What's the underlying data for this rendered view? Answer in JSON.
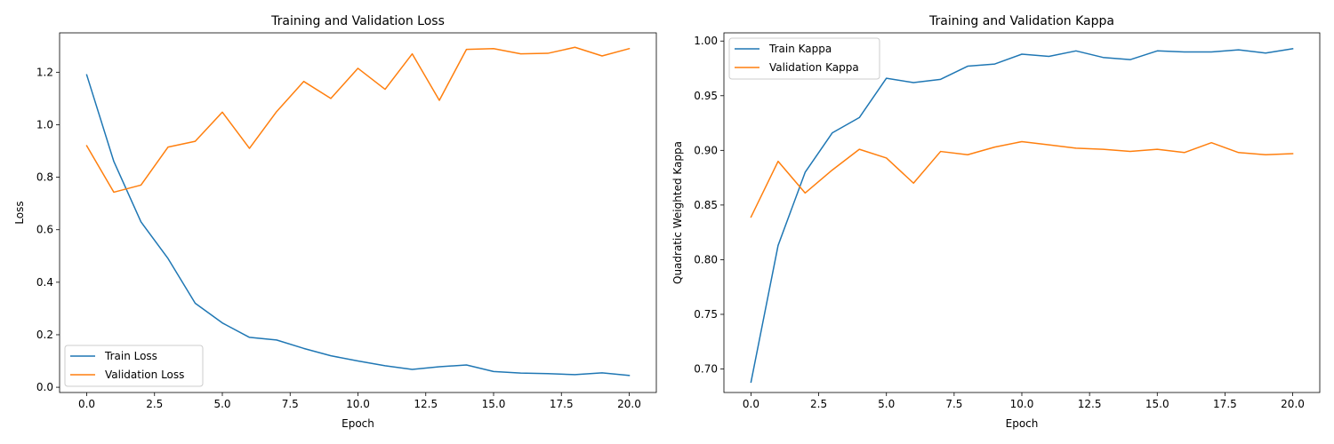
{
  "chart_data": [
    {
      "type": "line",
      "title": "Training and Validation Loss",
      "xlabel": "Epoch",
      "ylabel": "Loss",
      "xlim": [
        -1.0,
        21.0
      ],
      "ylim": [
        -0.02,
        1.35
      ],
      "xticks": [
        0.0,
        2.5,
        5.0,
        7.5,
        10.0,
        12.5,
        15.0,
        17.5,
        20.0
      ],
      "xtick_labels": [
        "0.0",
        "2.5",
        "5.0",
        "7.5",
        "10.0",
        "12.5",
        "15.0",
        "17.5",
        "20.0"
      ],
      "yticks": [
        0.0,
        0.2,
        0.4,
        0.6,
        0.8,
        1.0,
        1.2
      ],
      "ytick_labels": [
        "0.0",
        "0.2",
        "0.4",
        "0.6",
        "0.8",
        "1.0",
        "1.2"
      ],
      "legend_loc": "lower-left",
      "grid": false,
      "x": [
        0,
        1,
        2,
        3,
        4,
        5,
        6,
        7,
        8,
        9,
        10,
        11,
        12,
        13,
        14,
        15,
        16,
        17,
        18,
        19,
        20
      ],
      "series": [
        {
          "name": "Train Loss",
          "color": "#1f77b4",
          "values": [
            1.19,
            0.86,
            0.63,
            0.49,
            0.32,
            0.245,
            0.19,
            0.18,
            0.148,
            0.12,
            0.1,
            0.082,
            0.068,
            0.078,
            0.085,
            0.06,
            0.054,
            0.052,
            0.048,
            0.055,
            0.045
          ]
        },
        {
          "name": "Validation Loss",
          "color": "#ff7f0e",
          "values": [
            0.92,
            0.743,
            0.77,
            0.915,
            0.937,
            1.048,
            0.91,
            1.05,
            1.165,
            1.1,
            1.215,
            1.135,
            1.27,
            1.093,
            1.287,
            1.29,
            1.27,
            1.272,
            1.295,
            1.262,
            1.29
          ]
        }
      ]
    },
    {
      "type": "line",
      "title": "Training and Validation Kappa",
      "xlabel": "Epoch",
      "ylabel": "Quadratic Weighted Kappa",
      "xlim": [
        -1.0,
        21.0
      ],
      "ylim": [
        0.6785,
        1.0075
      ],
      "xticks": [
        0.0,
        2.5,
        5.0,
        7.5,
        10.0,
        12.5,
        15.0,
        17.5,
        20.0
      ],
      "xtick_labels": [
        "0.0",
        "2.5",
        "5.0",
        "7.5",
        "10.0",
        "12.5",
        "15.0",
        "17.5",
        "20.0"
      ],
      "yticks": [
        0.7,
        0.75,
        0.8,
        0.85,
        0.9,
        0.95,
        1.0
      ],
      "ytick_labels": [
        "0.70",
        "0.75",
        "0.80",
        "0.85",
        "0.90",
        "0.95",
        "1.00"
      ],
      "legend_loc": "upper-left",
      "grid": false,
      "x": [
        0,
        1,
        2,
        3,
        4,
        5,
        6,
        7,
        8,
        9,
        10,
        11,
        12,
        13,
        14,
        15,
        16,
        17,
        18,
        19,
        20
      ],
      "series": [
        {
          "name": "Train Kappa",
          "color": "#1f77b4",
          "values": [
            0.688,
            0.813,
            0.88,
            0.916,
            0.93,
            0.966,
            0.962,
            0.965,
            0.977,
            0.979,
            0.988,
            0.986,
            0.991,
            0.985,
            0.983,
            0.991,
            0.99,
            0.99,
            0.992,
            0.989,
            0.993
          ]
        },
        {
          "name": "Validation Kappa",
          "color": "#ff7f0e",
          "values": [
            0.839,
            0.89,
            0.861,
            0.882,
            0.901,
            0.893,
            0.87,
            0.899,
            0.896,
            0.903,
            0.908,
            0.905,
            0.902,
            0.901,
            0.899,
            0.901,
            0.898,
            0.907,
            0.898,
            0.896,
            0.897
          ]
        }
      ]
    }
  ]
}
